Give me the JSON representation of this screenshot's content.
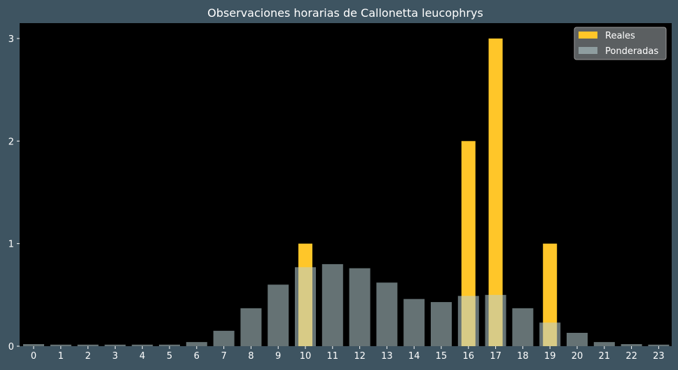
{
  "chart_data": {
    "type": "bar",
    "title": "Observaciones horarias de Callonetta leucophrys",
    "xlabel": "",
    "ylabel": "",
    "categories": [
      "0",
      "1",
      "2",
      "3",
      "4",
      "5",
      "6",
      "7",
      "8",
      "9",
      "10",
      "11",
      "12",
      "13",
      "14",
      "15",
      "16",
      "17",
      "18",
      "19",
      "20",
      "21",
      "22",
      "23"
    ],
    "series": [
      {
        "name": "Reales",
        "color": "#ffc629",
        "values": [
          0,
          0,
          0,
          0,
          0,
          0,
          0,
          0,
          0,
          0,
          1,
          0,
          0,
          0,
          0,
          0,
          2,
          3,
          0,
          1,
          0,
          0,
          0,
          0
        ]
      },
      {
        "name": "Ponderadas",
        "color": "#b8cfd3",
        "values": [
          0.02,
          0.015,
          0.015,
          0.015,
          0.015,
          0.015,
          0.04,
          0.15,
          0.37,
          0.6,
          0.77,
          0.8,
          0.76,
          0.62,
          0.46,
          0.43,
          0.49,
          0.5,
          0.37,
          0.23,
          0.13,
          0.04,
          0.02,
          0.015
        ]
      }
    ],
    "ylim": [
      0,
      3.15
    ],
    "yticks": [
      0,
      1,
      2,
      3
    ],
    "grid": false,
    "legend_position": "top-right",
    "plot_background": "#000000",
    "figure_background": "#3e5461"
  }
}
